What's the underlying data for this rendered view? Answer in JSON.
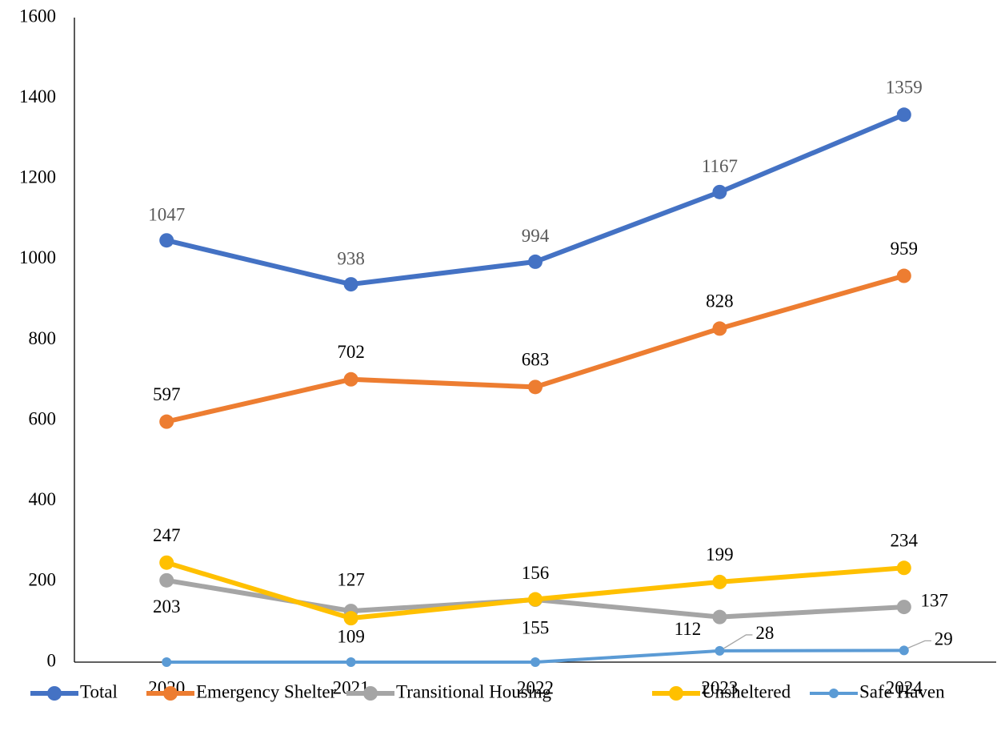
{
  "chart_data": {
    "type": "line",
    "categories": [
      "2020",
      "2021",
      "2022",
      "2023",
      "2024"
    ],
    "series": [
      {
        "name": "Total",
        "color": "#4472c4",
        "values": [
          1047,
          938,
          994,
          1167,
          1359
        ]
      },
      {
        "name": "Emergency Shelter",
        "color": "#ed7d31",
        "values": [
          597,
          702,
          683,
          828,
          959
        ]
      },
      {
        "name": "Transitional Housing",
        "color": "#a5a5a5",
        "values": [
          203,
          127,
          155,
          112,
          137
        ]
      },
      {
        "name": "Unsheltered",
        "color": "#ffc000",
        "values": [
          247,
          109,
          156,
          199,
          234
        ]
      },
      {
        "name": "Safe Haven",
        "color": "#5b9bd5",
        "values": [
          0,
          0,
          0,
          28,
          29
        ],
        "value_labels": [
          null,
          null,
          null,
          "28",
          "29"
        ]
      }
    ],
    "ylim": [
      0,
      1600
    ],
    "yticks": [
      0,
      200,
      400,
      600,
      800,
      1000,
      1200,
      1400,
      1600
    ],
    "grid": false,
    "legend": "bottom"
  }
}
